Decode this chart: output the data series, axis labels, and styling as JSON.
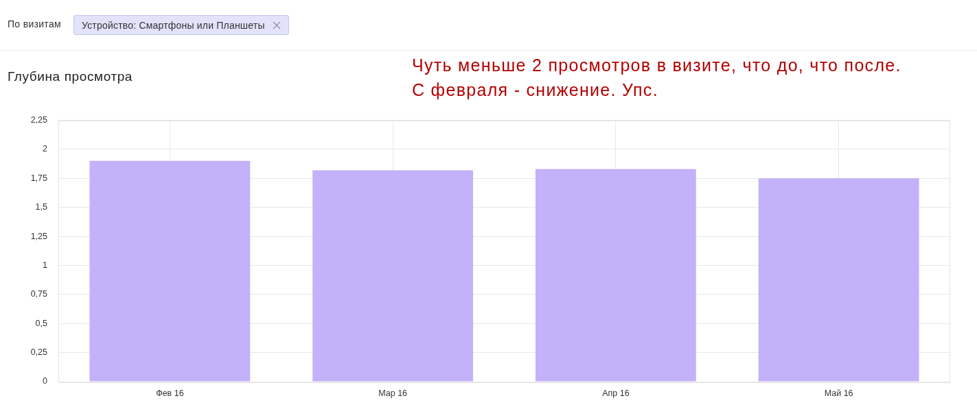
{
  "chart_data": {
    "type": "bar",
    "title": "Глубина просмотра",
    "annotations": [
      "По визитам",
      "Устройство: Смартфоны или Планшеты",
      "Чуть меньше 2 просмотров в визите, что до, что после.\nС февраля - снижение. Упс."
    ],
    "categories": [
      "Фев 16",
      "Мар 16",
      "Апр 16",
      "Май 16"
    ],
    "values": [
      1.9,
      1.82,
      1.83,
      1.75
    ],
    "color": "#c3b1f9",
    "ylim": [
      0,
      2.25
    ],
    "yticks": [
      0,
      {
        "value": 0.25,
        "label": "0,25"
      },
      {
        "value": 0.5,
        "label": "0,5"
      },
      {
        "value": 0.75,
        "label": "0,75"
      },
      1,
      {
        "value": 1.25,
        "label": "1,25"
      },
      {
        "value": 1.5,
        "label": "1,5"
      },
      {
        "value": 1.75,
        "label": "1,75"
      },
      2,
      {
        "value": 2.25,
        "label": "2,25"
      }
    ],
    "grid": true,
    "legend": false
  }
}
